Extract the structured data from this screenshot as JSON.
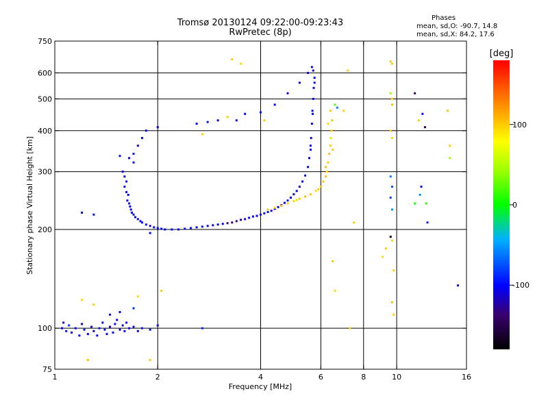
{
  "chart_data": {
    "type": "scatter",
    "title": "Tromsø 20130124 09:22:00-09:23:43",
    "subtitle": "RwPretec (8p)",
    "xlabel": "Frequency [MHz]",
    "ylabel": "Stationary phase Virtual Height [km]",
    "x_scale": "log",
    "y_scale": "log",
    "xlim": [
      1,
      16
    ],
    "ylim": [
      75,
      750
    ],
    "x_ticks": [
      1,
      2,
      4,
      6,
      8,
      10,
      16
    ],
    "x_tick_labels": [
      "1",
      "2",
      "4",
      "6",
      "8",
      "10",
      "16"
    ],
    "x_grid": [
      2,
      4,
      6,
      8,
      10
    ],
    "y_ticks": [
      75,
      100,
      200,
      300,
      400,
      500,
      600,
      750
    ],
    "y_tick_labels": [
      "75",
      "100",
      "200",
      "300",
      "400",
      "500",
      "600",
      "750"
    ],
    "y_grid": [
      100,
      200,
      300,
      400,
      500,
      600
    ],
    "grid": true,
    "legend": {
      "title": "Phases",
      "line1": "mean, sd,O: -90.7, 14.8",
      "line2": "mean, sd,X:  84.2, 17.6",
      "placement": "top-right"
    },
    "colorbar": {
      "label": "[deg]",
      "range": [
        -180,
        180
      ],
      "ticks": [
        100,
        0,
        -100
      ],
      "tick_labels": [
        "100",
        "0",
        "-100"
      ],
      "placement": "right"
    },
    "points": [
      [
        1.05,
        100,
        -100
      ],
      [
        1.06,
        104,
        -110
      ],
      [
        1.08,
        98,
        -95
      ],
      [
        1.1,
        102,
        -85
      ],
      [
        1.12,
        97,
        -100
      ],
      [
        1.15,
        100,
        -105
      ],
      [
        1.18,
        95,
        -100
      ],
      [
        1.2,
        103,
        -110
      ],
      [
        1.22,
        99,
        -95
      ],
      [
        1.25,
        96,
        -100
      ],
      [
        1.28,
        101,
        -100
      ],
      [
        1.3,
        98,
        -110
      ],
      [
        1.33,
        95,
        -100
      ],
      [
        1.35,
        100,
        -95
      ],
      [
        1.38,
        104,
        -105
      ],
      [
        1.4,
        99,
        -100
      ],
      [
        1.42,
        96,
        -100
      ],
      [
        1.45,
        101,
        -110
      ],
      [
        1.48,
        97,
        -95
      ],
      [
        1.5,
        103,
        -100
      ],
      [
        1.52,
        106,
        -105
      ],
      [
        1.55,
        99,
        -100
      ],
      [
        1.58,
        102,
        -110
      ],
      [
        1.6,
        98,
        -95
      ],
      [
        1.62,
        104,
        -100
      ],
      [
        1.65,
        100,
        -105
      ],
      [
        1.7,
        101,
        -100
      ],
      [
        1.75,
        98,
        -110
      ],
      [
        1.8,
        100,
        -95
      ],
      [
        1.9,
        99,
        -100
      ],
      [
        2.0,
        102,
        -100
      ],
      [
        2.7,
        100,
        -90
      ],
      [
        1.45,
        110,
        -95
      ],
      [
        1.55,
        112,
        -100
      ],
      [
        1.7,
        115,
        -85
      ],
      [
        1.3,
        118,
        100
      ],
      [
        1.2,
        122,
        95
      ],
      [
        1.25,
        80,
        105
      ],
      [
        1.9,
        80,
        100
      ],
      [
        1.58,
        300,
        -100
      ],
      [
        1.6,
        290,
        -110
      ],
      [
        1.62,
        280,
        -95
      ],
      [
        1.6,
        270,
        -100
      ],
      [
        1.62,
        260,
        -105
      ],
      [
        1.64,
        255,
        -100
      ],
      [
        1.63,
        245,
        -110
      ],
      [
        1.65,
        240,
        -95
      ],
      [
        1.66,
        235,
        -100
      ],
      [
        1.67,
        230,
        -105
      ],
      [
        1.68,
        225,
        -100
      ],
      [
        1.7,
        222,
        -110
      ],
      [
        1.72,
        218,
        -100
      ],
      [
        1.75,
        215,
        -95
      ],
      [
        1.78,
        212,
        -100
      ],
      [
        1.8,
        210,
        -105
      ],
      [
        1.85,
        207,
        -100
      ],
      [
        1.9,
        205,
        -110
      ],
      [
        1.95,
        203,
        -100
      ],
      [
        2.0,
        202,
        -95
      ],
      [
        2.05,
        201,
        -100
      ],
      [
        2.1,
        200,
        -105
      ],
      [
        2.2,
        200,
        -100
      ],
      [
        2.3,
        200,
        -110
      ],
      [
        2.4,
        201,
        -100
      ],
      [
        2.5,
        202,
        -95
      ],
      [
        2.6,
        203,
        -100
      ],
      [
        2.7,
        204,
        -105
      ],
      [
        2.8,
        205,
        -100
      ],
      [
        2.9,
        206,
        -100
      ],
      [
        3.0,
        207,
        -110
      ],
      [
        3.1,
        208,
        -100
      ],
      [
        3.2,
        209,
        -130
      ],
      [
        3.3,
        210,
        -140
      ],
      [
        3.4,
        212,
        -130
      ],
      [
        3.5,
        214,
        -120
      ],
      [
        3.6,
        215,
        -110
      ],
      [
        3.7,
        217,
        -100
      ],
      [
        3.8,
        219,
        -105
      ],
      [
        3.9,
        220,
        -100
      ],
      [
        4.0,
        222,
        -110
      ],
      [
        4.1,
        224,
        -100
      ],
      [
        4.2,
        226,
        -95
      ],
      [
        4.3,
        228,
        -100
      ],
      [
        4.4,
        231,
        -105
      ],
      [
        4.5,
        234,
        -100
      ],
      [
        4.6,
        237,
        -110
      ],
      [
        4.7,
        241,
        -100
      ],
      [
        4.8,
        245,
        -95
      ],
      [
        4.9,
        250,
        -100
      ],
      [
        5.0,
        256,
        -105
      ],
      [
        5.1,
        262,
        -100
      ],
      [
        5.2,
        270,
        -110
      ],
      [
        5.3,
        280,
        -100
      ],
      [
        5.4,
        292,
        -95
      ],
      [
        5.5,
        310,
        -100
      ],
      [
        5.55,
        330,
        -105
      ],
      [
        5.6,
        350,
        -100
      ],
      [
        5.62,
        380,
        -110
      ],
      [
        5.65,
        420,
        -100
      ],
      [
        5.67,
        460,
        -95
      ],
      [
        5.7,
        500,
        -100
      ],
      [
        5.72,
        540,
        -105
      ],
      [
        5.75,
        580,
        -100
      ],
      [
        5.7,
        610,
        -110
      ],
      [
        5.65,
        625,
        -100
      ],
      [
        5.75,
        560,
        -95
      ],
      [
        5.68,
        450,
        -100
      ],
      [
        5.6,
        360,
        -105
      ],
      [
        1.65,
        330,
        -100
      ],
      [
        1.7,
        340,
        -95
      ],
      [
        1.75,
        360,
        -110
      ],
      [
        1.8,
        380,
        -100
      ],
      [
        2.0,
        410,
        -105
      ],
      [
        2.6,
        420,
        -100
      ],
      [
        2.8,
        425,
        -95
      ],
      [
        3.0,
        430,
        -110
      ],
      [
        3.2,
        440,
        -100
      ],
      [
        3.4,
        430,
        -105
      ],
      [
        3.6,
        450,
        -100
      ],
      [
        4.0,
        455,
        -95
      ],
      [
        4.4,
        480,
        -100
      ],
      [
        4.8,
        520,
        -105
      ],
      [
        5.2,
        560,
        -100
      ],
      [
        5.5,
        600,
        -110
      ],
      [
        4.2,
        230,
        100
      ],
      [
        4.4,
        233,
        95
      ],
      [
        4.6,
        236,
        105
      ],
      [
        4.8,
        240,
        100
      ],
      [
        5.0,
        244,
        95
      ],
      [
        5.2,
        248,
        100
      ],
      [
        5.4,
        252,
        105
      ],
      [
        5.6,
        256,
        100
      ],
      [
        5.8,
        262,
        95
      ],
      [
        6.0,
        270,
        100
      ],
      [
        6.1,
        280,
        105
      ],
      [
        6.2,
        290,
        100
      ],
      [
        6.25,
        300,
        95
      ],
      [
        6.3,
        320,
        100
      ],
      [
        6.35,
        340,
        105
      ],
      [
        6.4,
        360,
        100
      ],
      [
        6.42,
        380,
        95
      ],
      [
        6.45,
        400,
        100
      ],
      [
        6.47,
        430,
        105
      ],
      [
        6.4,
        460,
        100
      ],
      [
        6.3,
        420,
        95
      ],
      [
        6.5,
        350,
        100
      ],
      [
        6.2,
        310,
        105
      ],
      [
        5.9,
        265,
        100
      ],
      [
        5.1,
        246,
        95
      ],
      [
        3.3,
        660,
        100
      ],
      [
        3.5,
        640,
        95
      ],
      [
        2.7,
        390,
        100
      ],
      [
        3.2,
        440,
        90
      ],
      [
        4.1,
        430,
        100
      ],
      [
        6.6,
        480,
        20
      ],
      [
        6.7,
        470,
        -60
      ],
      [
        7.0,
        460,
        100
      ],
      [
        7.2,
        610,
        100
      ],
      [
        7.5,
        210,
        100
      ],
      [
        6.5,
        160,
        100
      ],
      [
        6.6,
        130,
        95
      ],
      [
        7.3,
        100,
        100
      ],
      [
        9.6,
        650,
        100
      ],
      [
        9.7,
        640,
        100
      ],
      [
        9.6,
        520,
        40
      ],
      [
        9.7,
        500,
        100
      ],
      [
        9.7,
        480,
        105
      ],
      [
        9.6,
        400,
        100
      ],
      [
        9.7,
        380,
        95
      ],
      [
        9.6,
        290,
        -60
      ],
      [
        9.7,
        270,
        -70
      ],
      [
        9.6,
        250,
        -80
      ],
      [
        9.7,
        230,
        -50
      ],
      [
        9.6,
        190,
        -180
      ],
      [
        9.7,
        185,
        95
      ],
      [
        9.8,
        150,
        100
      ],
      [
        9.7,
        120,
        105
      ],
      [
        9.8,
        110,
        100
      ],
      [
        9.3,
        175,
        100
      ],
      [
        9.1,
        165,
        95
      ],
      [
        11.3,
        520,
        -140
      ],
      [
        11.9,
        450,
        -100
      ],
      [
        12.1,
        410,
        -150
      ],
      [
        11.6,
        430,
        100
      ],
      [
        11.8,
        270,
        -100
      ],
      [
        11.7,
        255,
        -50
      ],
      [
        12.2,
        240,
        10
      ],
      [
        12.3,
        210,
        -90
      ],
      [
        11.3,
        240,
        5
      ],
      [
        14.1,
        460,
        100
      ],
      [
        14.3,
        360,
        100
      ],
      [
        14.3,
        330,
        40
      ],
      [
        15.1,
        135,
        -100
      ],
      [
        1.7,
        320,
        -100
      ],
      [
        1.55,
        335,
        -95
      ],
      [
        1.85,
        400,
        -100
      ],
      [
        1.3,
        222,
        -100
      ],
      [
        1.2,
        225,
        -110
      ],
      [
        1.9,
        195,
        -100
      ],
      [
        2.05,
        130,
        100
      ],
      [
        1.75,
        125,
        95
      ]
    ]
  }
}
